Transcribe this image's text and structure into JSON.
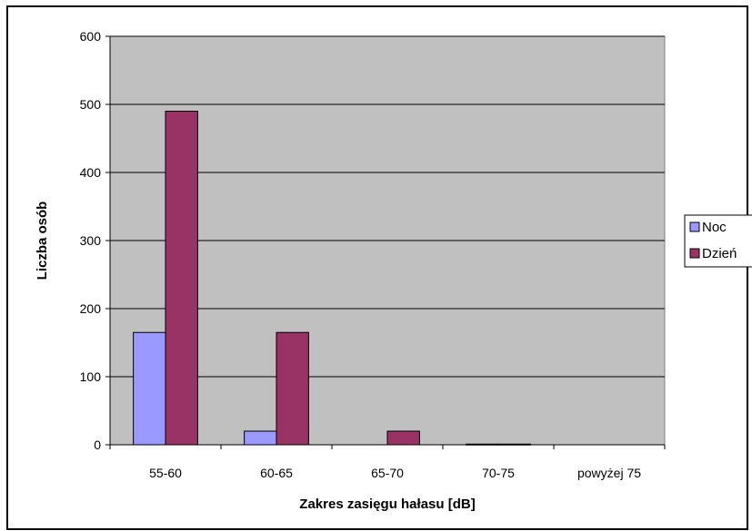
{
  "chart_data": {
    "type": "bar",
    "categories": [
      "55-60",
      "60-65",
      "65-70",
      "70-75",
      "powyżej 75"
    ],
    "series": [
      {
        "name": "Noc",
        "values": [
          165,
          20,
          0,
          1,
          0
        ],
        "color": "#9999FF"
      },
      {
        "name": "Dzień",
        "values": [
          490,
          165,
          20,
          1,
          0
        ],
        "color": "#993366"
      }
    ],
    "xlabel": "Zakres zasięgu hałasu [dB]",
    "ylabel": "Liczba osób",
    "ylim": [
      0,
      600
    ],
    "yticks": [
      0,
      100,
      200,
      300,
      400,
      500,
      600
    ],
    "grid": true,
    "plot_background": "#C0C0C0",
    "legend_position": "right"
  }
}
